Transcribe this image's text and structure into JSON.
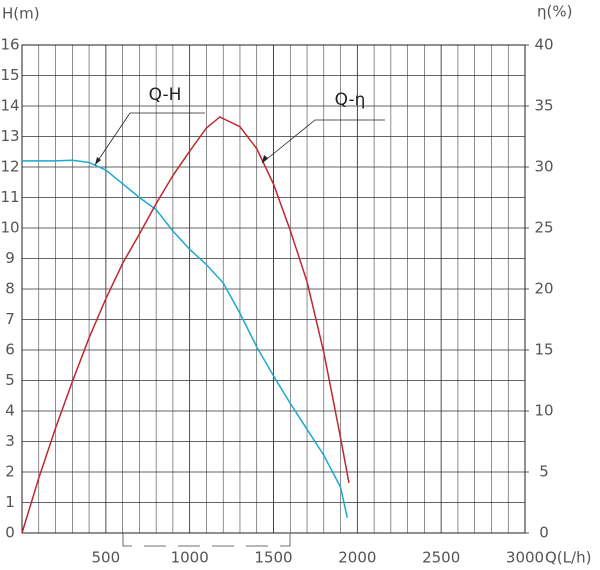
{
  "chart_data": {
    "type": "line",
    "x_label": "Q(L/h)",
    "y_label": "H(m)",
    "y2_label": "η(%)",
    "xlim": [
      0,
      3000
    ],
    "xticks": [
      500,
      1000,
      1500,
      2000,
      2500,
      3000
    ],
    "ylim": [
      0,
      16
    ],
    "yticks": [
      0,
      1,
      2,
      3,
      4,
      5,
      6,
      7,
      8,
      9,
      10,
      11,
      12,
      13,
      14,
      15,
      16
    ],
    "y2lim": [
      0,
      40
    ],
    "y2ticks": [
      0,
      5,
      10,
      15,
      20,
      25,
      30,
      35,
      40
    ],
    "grid": true,
    "series": [
      {
        "name": "Q-H",
        "color": "#1aa9cf",
        "x": [
          0,
          200,
          300,
          400,
          500,
          600,
          700,
          800,
          900,
          1000,
          1100,
          1200,
          1300,
          1400,
          1500,
          1600,
          1700,
          1800,
          1900,
          1940
        ],
        "values": [
          12.2,
          12.2,
          12.22,
          12.15,
          11.9,
          11.45,
          11.0,
          10.6,
          9.9,
          9.3,
          8.8,
          8.2,
          7.2,
          6.1,
          5.15,
          4.25,
          3.4,
          2.55,
          1.5,
          0.5
        ]
      },
      {
        "name": "Q-η",
        "color": "#c0282e",
        "axis": "y2",
        "x": [
          0,
          100,
          200,
          300,
          400,
          500,
          600,
          700,
          800,
          900,
          1000,
          1100,
          1180,
          1300,
          1400,
          1500,
          1600,
          1700,
          1800,
          1900,
          1950
        ],
        "values": [
          0,
          4.5,
          8.6,
          12.4,
          16,
          19.2,
          22.1,
          24.5,
          27.0,
          29.3,
          31.3,
          33.2,
          34.1,
          33.3,
          31.5,
          28.6,
          24.8,
          20.6,
          14.8,
          7.8,
          4.1
        ]
      }
    ]
  }
}
